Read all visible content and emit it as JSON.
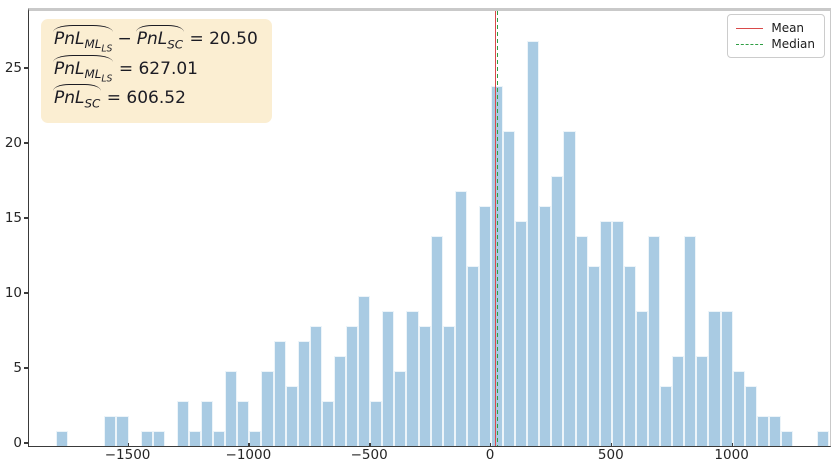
{
  "annotation": {
    "line1": {
      "term1": "PnL",
      "term1_sub": "ML",
      "term1_subsub": "LS",
      "operator": "−",
      "term2": "PnL",
      "term2_sub": "SC",
      "rhs": "= 20.50"
    },
    "line2": {
      "term1": "PnL",
      "term1_sub": "ML",
      "term1_subsub": "LS",
      "rhs": "= 627.01"
    },
    "line3": {
      "term1": "PnL",
      "term1_sub": "SC",
      "rhs": "= 606.52"
    }
  },
  "legend": {
    "items": [
      {
        "label": "Mean",
        "color": "#d94a4a",
        "dash": "solid"
      },
      {
        "label": "Median",
        "color": "#2f9e44",
        "dash": "dashed"
      }
    ]
  },
  "chart_data": {
    "type": "histogram",
    "title": "",
    "xlabel": "",
    "ylabel": "",
    "bin_start": -1800,
    "bin_width": 50,
    "counts": [
      1,
      0,
      0,
      0,
      2,
      2,
      0,
      1,
      1,
      0,
      3,
      1,
      3,
      1,
      5,
      3,
      1,
      5,
      7,
      4,
      7,
      8,
      3,
      6,
      8,
      10,
      3,
      9,
      5,
      9,
      8,
      14,
      8,
      17,
      12,
      16,
      24,
      21,
      15,
      27,
      16,
      18,
      21,
      14,
      12,
      15,
      15,
      12,
      9,
      14,
      4,
      6,
      14,
      6,
      9,
      9,
      5,
      4,
      2,
      2,
      1,
      0,
      0,
      1
    ],
    "x_ticks": [
      -1500,
      -1000,
      -500,
      0,
      500,
      1000
    ],
    "x_tick_labels": [
      "−1500",
      "−1000",
      "−500",
      "0",
      "500",
      "1000"
    ],
    "y_ticks": [
      0,
      5,
      10,
      15,
      20,
      25
    ],
    "y_tick_labels": [
      "0",
      "5",
      "10",
      "15",
      "20",
      "25"
    ],
    "xlim": [
      -1912,
      1403
    ],
    "ylim": [
      0,
      29
    ],
    "mean_value": 20.5,
    "median_value_approx": 25,
    "grid": false,
    "legend_position": "upper right",
    "bar_color": "#a9cbe3",
    "bar_edge_color": "rgba(255,255,255,0.78)",
    "mean_line_color": "#d94a4a",
    "median_line_color": "#2f9e44",
    "annotation_bg_color": "#fbeed2"
  }
}
